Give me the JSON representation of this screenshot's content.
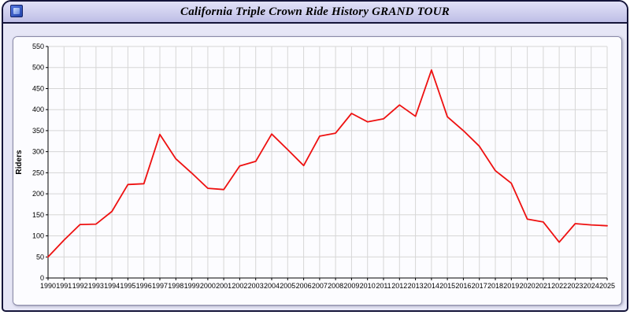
{
  "window": {
    "title": "California Triple Crown Ride History GRAND TOUR",
    "icon": "app-icon",
    "title_bar_color": "#c8c8ea",
    "border_color": "#15153a",
    "body_color": "#e6e6f6"
  },
  "chart_data": {
    "type": "line",
    "title": "California Triple Crown Ride History GRAND TOUR",
    "xlabel": "",
    "ylabel": "Riders",
    "x": [
      1990,
      1991,
      1992,
      1993,
      1994,
      1995,
      1996,
      1997,
      1998,
      1999,
      2000,
      2001,
      2002,
      2003,
      2004,
      2005,
      2006,
      2007,
      2008,
      2009,
      2010,
      2011,
      2012,
      2013,
      2014,
      2015,
      2016,
      2017,
      2018,
      2019,
      2020,
      2021,
      2022,
      2023,
      2024,
      2025
    ],
    "values": [
      50,
      90,
      127,
      128,
      158,
      222,
      224,
      341,
      283,
      249,
      213,
      210,
      266,
      277,
      342,
      305,
      267,
      337,
      344,
      391,
      371,
      378,
      411,
      384,
      494,
      383,
      350,
      313,
      255,
      225,
      140,
      133,
      85,
      129,
      126,
      124
    ],
    "ylim": [
      0,
      550
    ],
    "ytick_step": 50,
    "grid": true,
    "legend": "none",
    "line_color": "#ee1111",
    "grid_color": "#d6d6d6",
    "axis_color": "#000000",
    "plot_bg": "#fcfcff"
  }
}
